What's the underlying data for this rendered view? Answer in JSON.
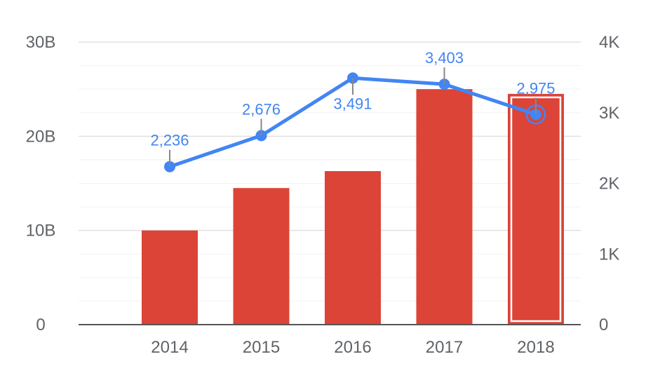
{
  "chart_data": {
    "type": "bar+line",
    "categories": [
      "2014",
      "2015",
      "2016",
      "2017",
      "2018"
    ],
    "series": [
      {
        "axis": "left",
        "kind": "bar",
        "color": "#db4437",
        "values": [
          10.0,
          14.5,
          16.3,
          25.0,
          24.5
        ]
      },
      {
        "axis": "right",
        "kind": "line",
        "color": "#4285f4",
        "values": [
          2236,
          2676,
          3491,
          3403,
          2975
        ],
        "labels": [
          "2,236",
          "2,676",
          "3,491",
          "3,403",
          "2,975"
        ]
      }
    ],
    "y_left": {
      "ylim": [
        0,
        30
      ],
      "ticks": [
        0,
        10,
        20,
        30
      ],
      "tick_labels": [
        "0",
        "10B",
        "20B",
        "30B"
      ],
      "unit": "B"
    },
    "y_right": {
      "ylim": [
        0,
        4000
      ],
      "ticks": [
        0,
        1000,
        2000,
        3000,
        4000
      ],
      "tick_labels": [
        "0",
        "1K",
        "2K",
        "3K",
        "4K"
      ]
    },
    "highlighted_category": "2018",
    "grid": true
  }
}
